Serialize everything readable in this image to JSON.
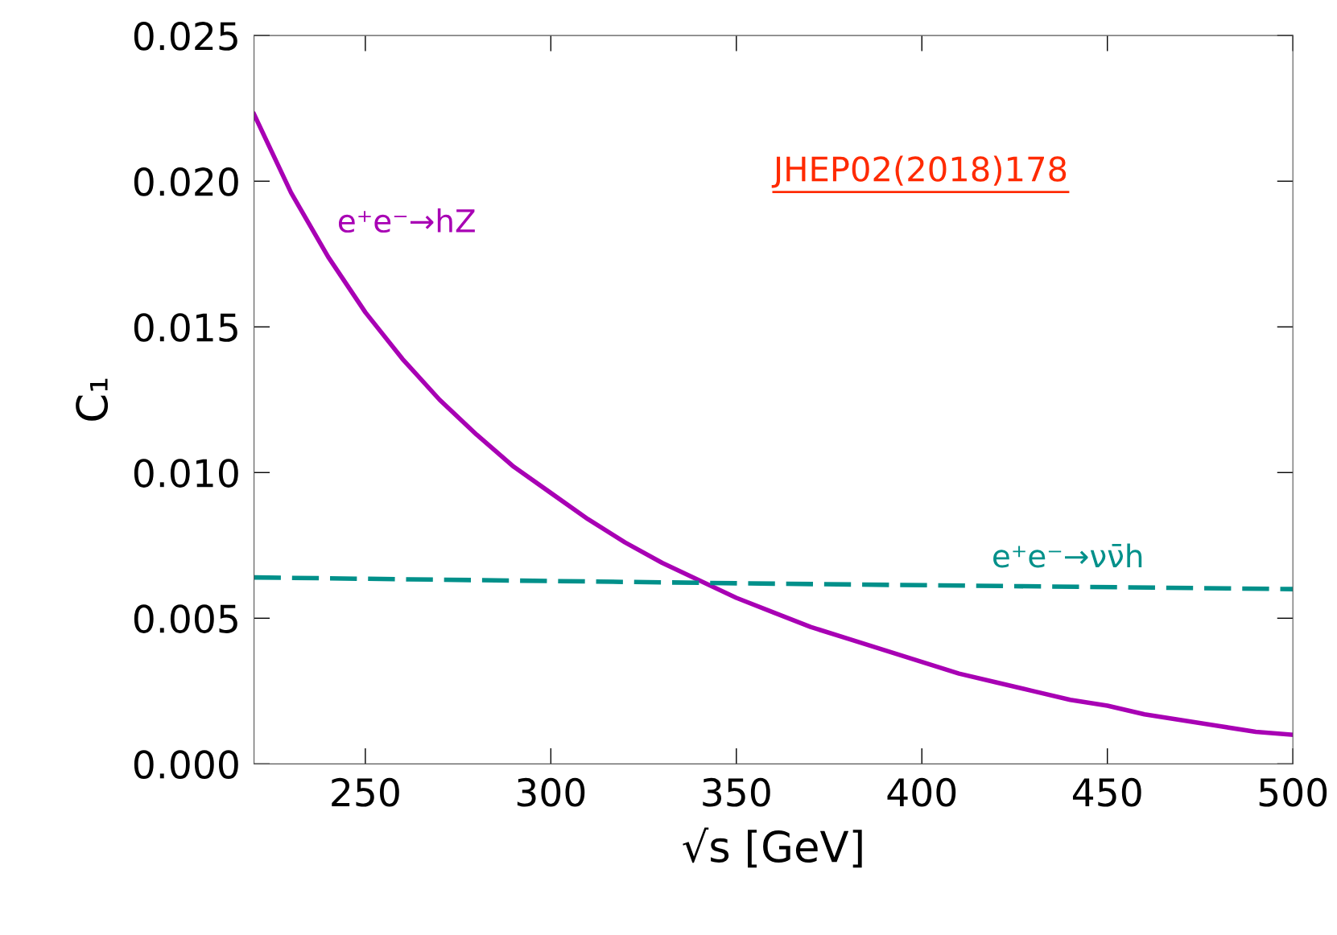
{
  "chart_data": {
    "type": "line",
    "xlabel": "√s [GeV]",
    "ylabel": "C₁",
    "series": [
      {
        "name": "e⁺e⁻→hZ",
        "color": "#a800b4",
        "line_style": "solid",
        "x": [
          220,
          230,
          240,
          250,
          260,
          270,
          280,
          290,
          300,
          310,
          320,
          330,
          340,
          350,
          360,
          370,
          380,
          390,
          400,
          410,
          420,
          430,
          440,
          450,
          460,
          470,
          480,
          490,
          500
        ],
        "values": [
          0.0223,
          0.0196,
          0.0174,
          0.0155,
          0.0139,
          0.0125,
          0.0113,
          0.0102,
          0.0093,
          0.0084,
          0.0076,
          0.0069,
          0.0063,
          0.0057,
          0.0052,
          0.0047,
          0.0043,
          0.0039,
          0.0035,
          0.0031,
          0.0028,
          0.0025,
          0.0022,
          0.002,
          0.0017,
          0.0015,
          0.0013,
          0.0011,
          0.001
        ]
      },
      {
        "name": "e⁺e⁻→νν̄h",
        "color": "#00908a",
        "line_style": "dashed",
        "x": [
          220,
          350,
          500
        ],
        "values": [
          0.0064,
          0.0062,
          0.006
        ]
      }
    ],
    "xlim": [
      220,
      500
    ],
    "xticks": [
      250,
      300,
      350,
      400,
      450,
      500
    ],
    "ylim": [
      0,
      0.025
    ],
    "yticks": [
      {
        "value": 0,
        "label": "0.000"
      },
      {
        "value": 0.005,
        "label": "0.005"
      },
      {
        "value": 0.01,
        "label": "0.010"
      },
      {
        "value": 0.015,
        "label": "0.015"
      },
      {
        "value": 0.02,
        "label": "0.020"
      },
      {
        "value": 0.025,
        "label": "0.025"
      }
    ],
    "grid": false,
    "legend": false,
    "annotations": [
      "JHEP02(2018)178"
    ]
  }
}
